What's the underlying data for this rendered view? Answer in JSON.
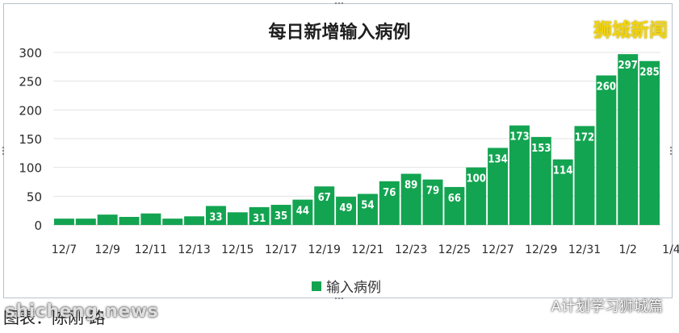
{
  "chart_data": {
    "type": "bar",
    "title": "每日新增输入病例",
    "categories": [
      "12/7",
      "12/8",
      "12/9",
      "12/10",
      "12/11",
      "12/12",
      "12/13",
      "12/14",
      "12/15",
      "12/16",
      "12/17",
      "12/18",
      "12/19",
      "12/20",
      "12/21",
      "12/22",
      "12/23",
      "12/24",
      "12/25",
      "12/26",
      "12/27",
      "12/28",
      "12/29",
      "12/30",
      "12/31",
      "1/1",
      "1/2",
      "1/3"
    ],
    "tick_labels": [
      "12/7",
      "12/9",
      "12/11",
      "12/13",
      "12/15",
      "12/17",
      "12/19",
      "12/21",
      "12/23",
      "12/25",
      "12/27",
      "12/29",
      "12/31",
      "1/2",
      "1/4"
    ],
    "series": [
      {
        "name": "输入病例",
        "values": [
          11,
          11,
          18,
          14,
          20,
          11,
          15,
          33,
          22,
          31,
          35,
          44,
          67,
          49,
          54,
          76,
          89,
          79,
          66,
          100,
          134,
          173,
          153,
          114,
          172,
          260,
          297,
          285
        ],
        "labels": [
          "",
          "",
          "",
          "",
          "",
          "",
          "",
          "33",
          "",
          "31",
          "35",
          "44",
          "67",
          "49",
          "54",
          "76",
          "89",
          "79",
          "66",
          "100",
          "134",
          "173",
          "153",
          "114",
          "172",
          "260",
          "297",
          "285"
        ]
      }
    ],
    "ylim": [
      0,
      300
    ],
    "yticks": [
      0,
      50,
      100,
      150,
      200,
      250,
      300
    ],
    "grid": true,
    "legend": "bottom",
    "color": "#13a451"
  },
  "brand": "狮城新闻",
  "caption": "图表：陈刚·路",
  "watermark": "shicheng.news",
  "source": "A计划学习狮城篇"
}
